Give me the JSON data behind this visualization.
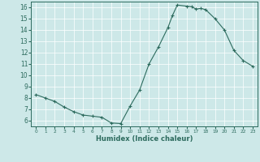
{
  "x_vals": [
    0,
    1,
    2,
    3,
    4,
    5,
    6,
    7,
    8,
    9,
    10,
    11,
    12,
    13,
    14,
    14.5,
    15,
    16,
    16.5,
    17,
    17.5,
    18,
    19,
    20,
    21,
    22,
    23
  ],
  "y_vals": [
    8.3,
    8.0,
    7.7,
    7.2,
    6.8,
    6.5,
    6.4,
    6.3,
    5.8,
    5.75,
    7.3,
    8.7,
    11.0,
    12.5,
    14.2,
    15.3,
    16.2,
    16.1,
    16.05,
    15.85,
    15.9,
    15.8,
    15.0,
    14.0,
    12.2,
    11.3,
    10.8
  ],
  "xlim": [
    -0.5,
    23.5
  ],
  "ylim": [
    5.5,
    16.5
  ],
  "yticks": [
    6,
    7,
    8,
    9,
    10,
    11,
    12,
    13,
    14,
    15,
    16
  ],
  "xticks": [
    0,
    1,
    2,
    3,
    4,
    5,
    6,
    7,
    8,
    9,
    10,
    11,
    12,
    13,
    14,
    15,
    16,
    17,
    18,
    19,
    20,
    21,
    22,
    23
  ],
  "xlabel": "Humidex (Indice chaleur)",
  "line_color": "#2d6b5e",
  "bg_color": "#cde8e8",
  "grid_color": "#ffffff"
}
